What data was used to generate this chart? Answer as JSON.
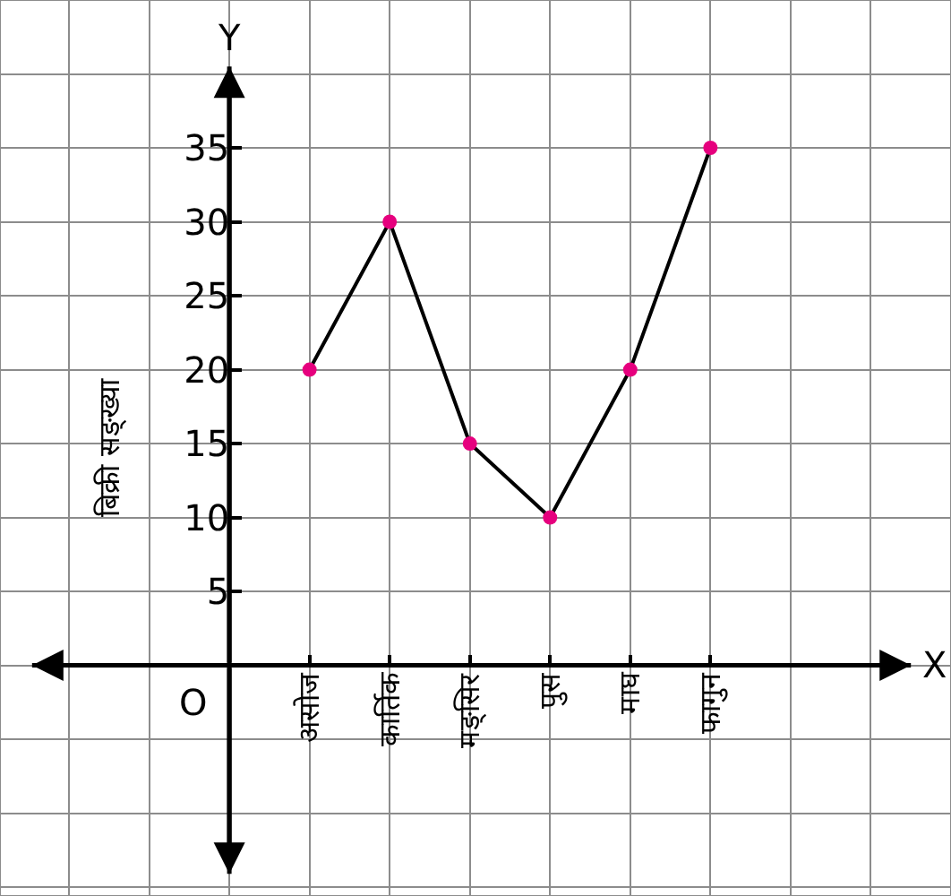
{
  "chart_data": {
    "type": "line",
    "xlabel": "X",
    "ylabel": "बिक्री सङ्ख्या",
    "annotations": [
      "Y",
      "O"
    ],
    "categories": [
      "असोज",
      "कार्तिक",
      "मङ्सिर",
      "पुस",
      "माघ",
      "फागुन"
    ],
    "series": [
      {
        "color": "#000000",
        "colors": [
          "#e6007e",
          "#e6007e",
          "#e6007e",
          "#e6007e",
          "#e6007e",
          "#e6007e"
        ],
        "values": [
          20,
          30,
          15,
          10,
          20,
          35
        ]
      }
    ],
    "ylim": [
      -15.6,
      45
    ],
    "yticks": [
      5,
      10,
      15,
      20,
      25,
      30,
      35
    ],
    "grid": true,
    "marker": "circle",
    "line_style": "solid"
  }
}
